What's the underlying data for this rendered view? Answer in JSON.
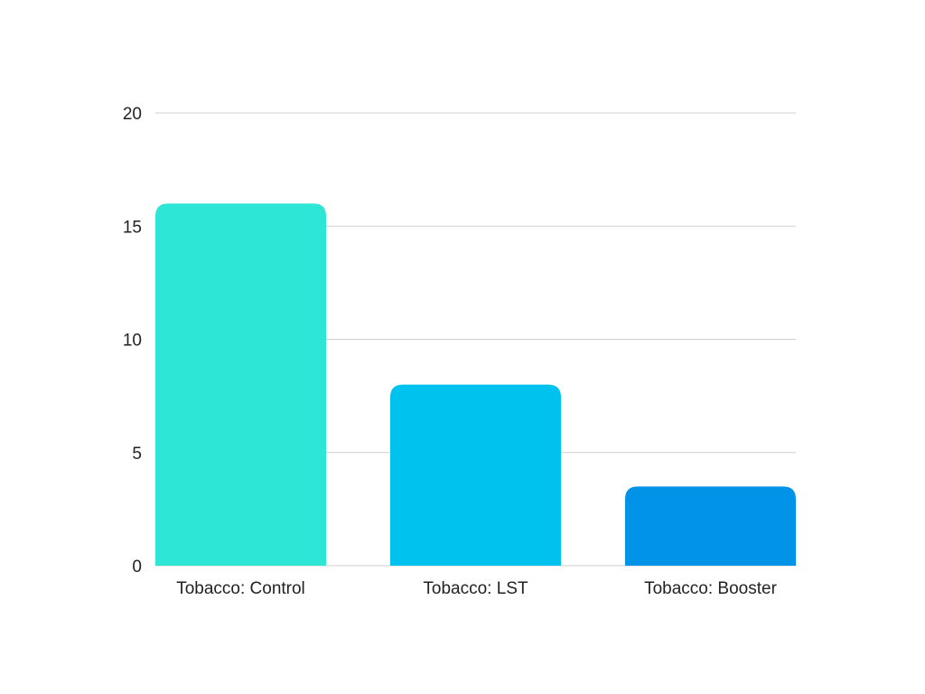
{
  "chart_data": {
    "type": "bar",
    "title": "",
    "xlabel": "",
    "ylabel": "",
    "categories": [
      "Tobacco: Control",
      "Tobacco: LST",
      "Tobacco: Booster"
    ],
    "values": [
      16,
      8,
      3.5
    ],
    "colors": [
      "#2ee6d6",
      "#00c2ee",
      "#0093e8"
    ],
    "ylim": [
      0,
      20
    ],
    "yticks": [
      0,
      5,
      10,
      15,
      20
    ],
    "grid": true,
    "legend": "none"
  }
}
